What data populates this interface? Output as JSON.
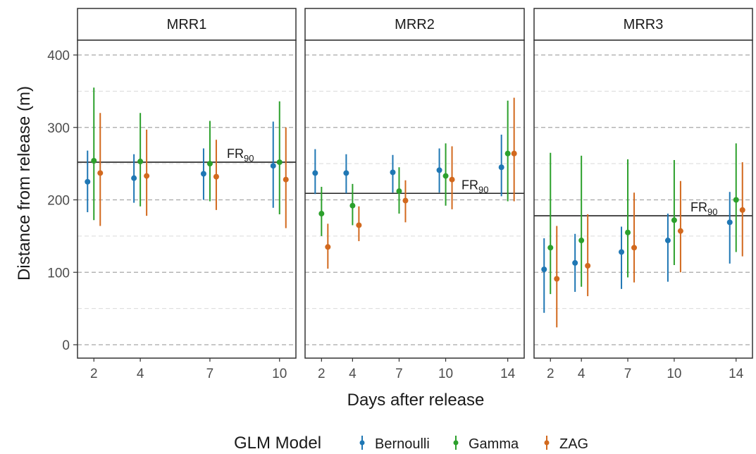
{
  "chart_data": {
    "type": "scatter",
    "ylabel": "Distance from release (m)",
    "xlabel": "Days after release",
    "ylim": [
      0,
      400
    ],
    "yticks": [
      "0",
      "100",
      "200",
      "300",
      "400"
    ],
    "grid": "dashed horizontal",
    "legend": {
      "title": "GLM Model",
      "position": "bottom",
      "entries": [
        {
          "name": "Bernoulli",
          "color": "#1f77b4"
        },
        {
          "name": "Gamma",
          "color": "#2ca02c"
        },
        {
          "name": "ZAG",
          "color": "#d2691e"
        }
      ]
    },
    "annotation_label": {
      "base": "FR",
      "sub": "90"
    },
    "panels": [
      {
        "title": "MRR1",
        "days": [
          2,
          4,
          7,
          10
        ],
        "xticks": [
          "2",
          "4",
          "7",
          "10"
        ],
        "fr90": 252,
        "series": [
          {
            "name": "Bernoulli",
            "points": [
              {
                "day": 2,
                "y": 225,
                "lo": 183,
                "hi": 268
              },
              {
                "day": 4,
                "y": 230,
                "lo": 196,
                "hi": 263
              },
              {
                "day": 7,
                "y": 236,
                "lo": 200,
                "hi": 271
              },
              {
                "day": 10,
                "y": 247,
                "lo": 189,
                "hi": 308
              }
            ]
          },
          {
            "name": "Gamma",
            "points": [
              {
                "day": 2,
                "y": 254,
                "lo": 172,
                "hi": 355
              },
              {
                "day": 4,
                "y": 253,
                "lo": 191,
                "hi": 320
              },
              {
                "day": 7,
                "y": 250,
                "lo": 198,
                "hi": 309
              },
              {
                "day": 10,
                "y": 252,
                "lo": 180,
                "hi": 336
              }
            ]
          },
          {
            "name": "ZAG",
            "points": [
              {
                "day": 2,
                "y": 237,
                "lo": 164,
                "hi": 320
              },
              {
                "day": 4,
                "y": 233,
                "lo": 178,
                "hi": 297
              },
              {
                "day": 7,
                "y": 232,
                "lo": 186,
                "hi": 283
              },
              {
                "day": 10,
                "y": 228,
                "lo": 161,
                "hi": 300
              }
            ]
          }
        ]
      },
      {
        "title": "MRR2",
        "days": [
          2,
          4,
          7,
          10,
          14
        ],
        "xticks": [
          "2",
          "4",
          "7",
          "10",
          "14"
        ],
        "fr90": 209,
        "series": [
          {
            "name": "Bernoulli",
            "points": [
              {
                "day": 2,
                "y": 237,
                "lo": 208,
                "hi": 270
              },
              {
                "day": 4,
                "y": 237,
                "lo": 209,
                "hi": 263
              },
              {
                "day": 7,
                "y": 238,
                "lo": 210,
                "hi": 262
              },
              {
                "day": 10,
                "y": 241,
                "lo": 210,
                "hi": 271
              },
              {
                "day": 14,
                "y": 245,
                "lo": 205,
                "hi": 290
              }
            ]
          },
          {
            "name": "Gamma",
            "points": [
              {
                "day": 2,
                "y": 181,
                "lo": 150,
                "hi": 218
              },
              {
                "day": 4,
                "y": 192,
                "lo": 165,
                "hi": 222
              },
              {
                "day": 7,
                "y": 212,
                "lo": 181,
                "hi": 245
              },
              {
                "day": 10,
                "y": 233,
                "lo": 192,
                "hi": 278
              },
              {
                "day": 14,
                "y": 264,
                "lo": 198,
                "hi": 337
              }
            ]
          },
          {
            "name": "ZAG",
            "points": [
              {
                "day": 2,
                "y": 135,
                "lo": 105,
                "hi": 167
              },
              {
                "day": 4,
                "y": 165,
                "lo": 143,
                "hi": 191
              },
              {
                "day": 7,
                "y": 199,
                "lo": 169,
                "hi": 227
              },
              {
                "day": 10,
                "y": 228,
                "lo": 187,
                "hi": 274
              },
              {
                "day": 14,
                "y": 264,
                "lo": 198,
                "hi": 341
              }
            ]
          }
        ]
      },
      {
        "title": "MRR3",
        "days": [
          2,
          4,
          7,
          10,
          14
        ],
        "xticks": [
          "2",
          "4",
          "7",
          "10",
          "14"
        ],
        "fr90": 178,
        "series": [
          {
            "name": "Bernoulli",
            "points": [
              {
                "day": 2,
                "y": 104,
                "lo": 44,
                "hi": 147
              },
              {
                "day": 4,
                "y": 113,
                "lo": 73,
                "hi": 153
              },
              {
                "day": 7,
                "y": 128,
                "lo": 77,
                "hi": 163
              },
              {
                "day": 10,
                "y": 144,
                "lo": 87,
                "hi": 181
              },
              {
                "day": 14,
                "y": 169,
                "lo": 112,
                "hi": 211
              }
            ]
          },
          {
            "name": "Gamma",
            "points": [
              {
                "day": 2,
                "y": 134,
                "lo": 70,
                "hi": 265
              },
              {
                "day": 4,
                "y": 144,
                "lo": 80,
                "hi": 261
              },
              {
                "day": 7,
                "y": 155,
                "lo": 93,
                "hi": 256
              },
              {
                "day": 10,
                "y": 172,
                "lo": 110,
                "hi": 255
              },
              {
                "day": 14,
                "y": 200,
                "lo": 128,
                "hi": 278
              }
            ]
          },
          {
            "name": "ZAG",
            "points": [
              {
                "day": 2,
                "y": 91,
                "lo": 24,
                "hi": 164
              },
              {
                "day": 4,
                "y": 109,
                "lo": 67,
                "hi": 180
              },
              {
                "day": 7,
                "y": 134,
                "lo": 86,
                "hi": 210
              },
              {
                "day": 10,
                "y": 157,
                "lo": 100,
                "hi": 226
              },
              {
                "day": 14,
                "y": 186,
                "lo": 122,
                "hi": 252
              }
            ]
          }
        ]
      }
    ]
  }
}
